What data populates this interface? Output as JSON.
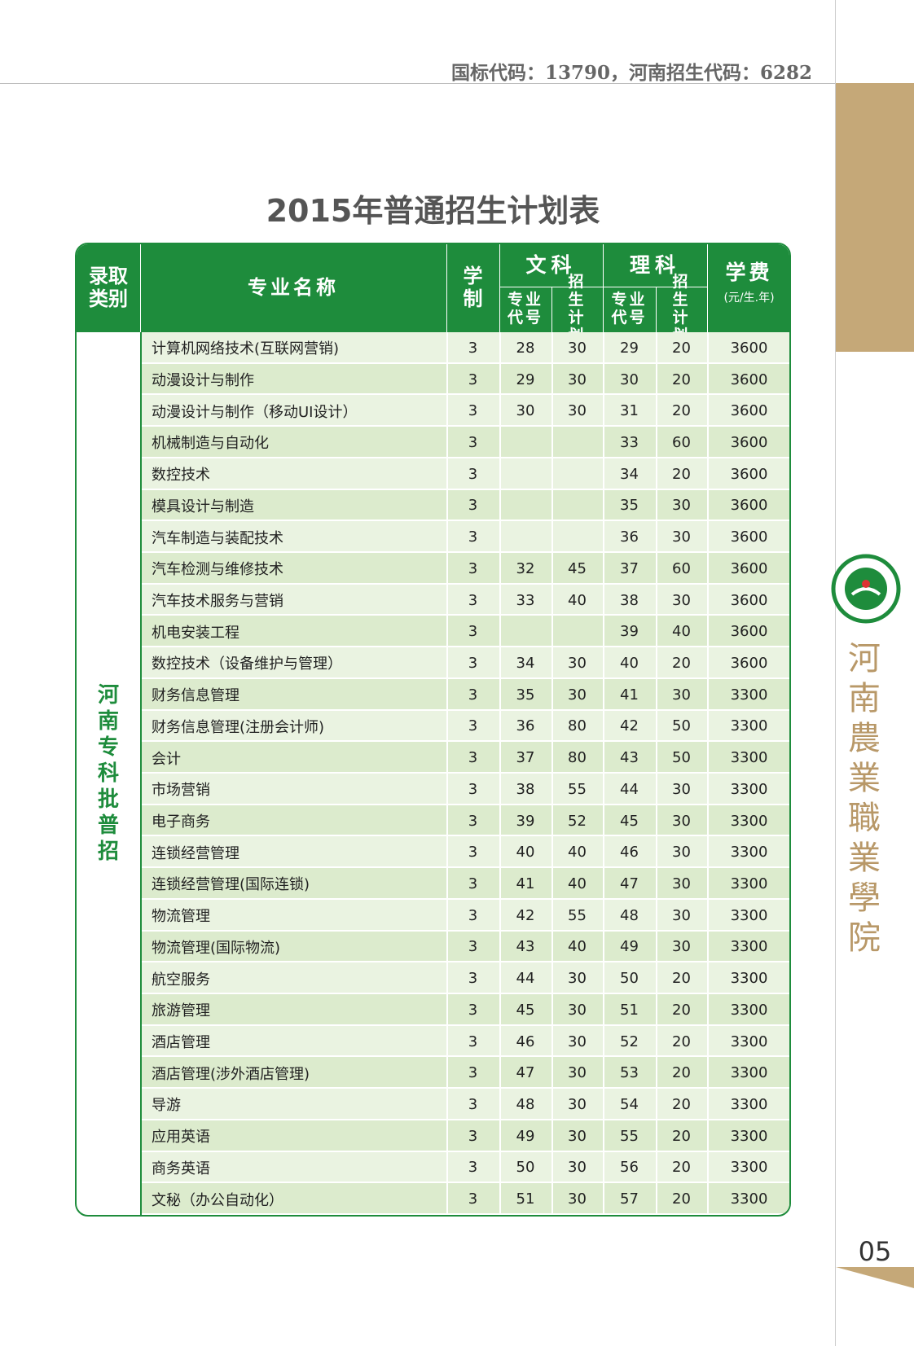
{
  "header": {
    "codes": "国标代码：13790，河南招生代码：6282"
  },
  "title": "2015年普通招生计划表",
  "table": {
    "columns": {
      "category": "录取类别",
      "major": "专业名称",
      "years": "学制",
      "arts": "文科",
      "science": "理科",
      "code": "专业代号",
      "plan": "招生计划",
      "fee": "学费",
      "fee_unit": "(元/生.年)"
    },
    "category": "河南专科批普招",
    "rows": [
      [
        "计算机网络技术(互联网营销)",
        3,
        28,
        30,
        29,
        20,
        3600
      ],
      [
        "动漫设计与制作",
        3,
        29,
        30,
        30,
        20,
        3600
      ],
      [
        "动漫设计与制作（移动UI设计）",
        3,
        30,
        30,
        31,
        20,
        3600
      ],
      [
        "机械制造与自动化",
        3,
        null,
        null,
        33,
        60,
        3600
      ],
      [
        "数控技术",
        3,
        null,
        null,
        34,
        20,
        3600
      ],
      [
        "模具设计与制造",
        3,
        null,
        null,
        35,
        30,
        3600
      ],
      [
        "汽车制造与装配技术",
        3,
        null,
        null,
        36,
        30,
        3600
      ],
      [
        "汽车检测与维修技术",
        3,
        32,
        45,
        37,
        60,
        3600
      ],
      [
        "汽车技术服务与营销",
        3,
        33,
        40,
        38,
        30,
        3600
      ],
      [
        "机电安装工程",
        3,
        null,
        null,
        39,
        40,
        3600
      ],
      [
        "数控技术（设备维护与管理）",
        3,
        34,
        30,
        40,
        20,
        3600
      ],
      [
        "财务信息管理",
        3,
        35,
        30,
        41,
        30,
        3300
      ],
      [
        "财务信息管理(注册会计师)",
        3,
        36,
        80,
        42,
        50,
        3300
      ],
      [
        "会计",
        3,
        37,
        80,
        43,
        50,
        3300
      ],
      [
        "市场营销",
        3,
        38,
        55,
        44,
        30,
        3300
      ],
      [
        "电子商务",
        3,
        39,
        52,
        45,
        30,
        3300
      ],
      [
        "连锁经营管理",
        3,
        40,
        40,
        46,
        30,
        3300
      ],
      [
        "连锁经营管理(国际连锁)",
        3,
        41,
        40,
        47,
        30,
        3300
      ],
      [
        "物流管理",
        3,
        42,
        55,
        48,
        30,
        3300
      ],
      [
        "物流管理(国际物流)",
        3,
        43,
        40,
        49,
        30,
        3300
      ],
      [
        "航空服务",
        3,
        44,
        30,
        50,
        20,
        3300
      ],
      [
        "旅游管理",
        3,
        45,
        30,
        51,
        20,
        3300
      ],
      [
        "酒店管理",
        3,
        46,
        30,
        52,
        20,
        3300
      ],
      [
        "酒店管理(涉外酒店管理)",
        3,
        47,
        30,
        53,
        20,
        3300
      ],
      [
        "导游",
        3,
        48,
        30,
        54,
        20,
        3300
      ],
      [
        "应用英语",
        3,
        49,
        30,
        55,
        20,
        3300
      ],
      [
        "商务英语",
        3,
        50,
        30,
        56,
        20,
        3300
      ],
      [
        "文秘（办公自动化）",
        3,
        51,
        30,
        57,
        20,
        3300
      ]
    ]
  },
  "sidebar": {
    "school": "河南農業職業學院",
    "page": "05"
  }
}
